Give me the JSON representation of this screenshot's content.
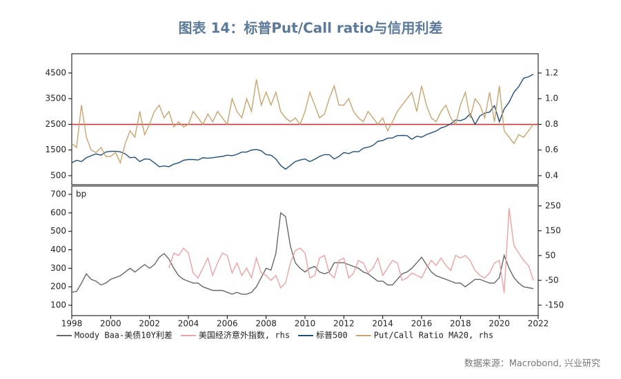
{
  "title": "图表 14：标普Put/Call ratio与信用利差",
  "source": "数据来源：Macrobond, 兴业研究",
  "chart_data": [
    {
      "type": "line",
      "xlim": [
        1998,
        2022
      ],
      "ylim": [
        150,
        5250
      ],
      "yticks": [
        500,
        1500,
        2500,
        3500,
        4500
      ],
      "y2lim": [
        0.33,
        1.35
      ],
      "y2ticks": [
        0.4,
        0.6,
        0.8,
        {
          "value": 1,
          "label": "1.0"
        },
        1.2
      ],
      "ref_line": {
        "axis": "y2",
        "value": 0.8,
        "color": "#d62728"
      },
      "x": [
        1998,
        1998.25,
        1998.5,
        1998.75,
        1999,
        1999.25,
        1999.5,
        1999.75,
        2000,
        2000.25,
        2000.5,
        2000.75,
        2001,
        2001.25,
        2001.5,
        2001.75,
        2002,
        2002.25,
        2002.5,
        2002.75,
        2003,
        2003.25,
        2003.5,
        2003.75,
        2004,
        2004.25,
        2004.5,
        2004.75,
        2005,
        2005.25,
        2005.5,
        2005.75,
        2006,
        2006.25,
        2006.5,
        2006.75,
        2007,
        2007.25,
        2007.5,
        2007.75,
        2008,
        2008.25,
        2008.5,
        2008.75,
        2009,
        2009.25,
        2009.5,
        2009.75,
        2010,
        2010.25,
        2010.5,
        2010.75,
        2011,
        2011.25,
        2011.5,
        2011.75,
        2012,
        2012.25,
        2012.5,
        2012.75,
        2013,
        2013.25,
        2013.5,
        2013.75,
        2014,
        2014.25,
        2014.5,
        2014.75,
        2015,
        2015.25,
        2015.5,
        2015.75,
        2016,
        2016.25,
        2016.5,
        2016.75,
        2017,
        2017.25,
        2017.5,
        2017.75,
        2018,
        2018.25,
        2018.5,
        2018.75,
        2019,
        2019.25,
        2019.5,
        2019.75,
        2020,
        2020.25,
        2020.5,
        2020.75,
        2021,
        2021.25,
        2021.5,
        2021.75
      ],
      "series": [
        {
          "name": "标普500",
          "color": "#1f4e79",
          "values": [
            1000,
            1100,
            1050,
            1200,
            1280,
            1350,
            1300,
            1420,
            1450,
            1450,
            1430,
            1350,
            1200,
            1220,
            1050,
            1150,
            1140,
            1000,
            850,
            880,
            850,
            950,
            1000,
            1100,
            1130,
            1130,
            1110,
            1200,
            1180,
            1200,
            1230,
            1250,
            1300,
            1280,
            1330,
            1420,
            1420,
            1500,
            1520,
            1470,
            1320,
            1300,
            1150,
            900,
            750,
            900,
            1050,
            1110,
            1150,
            1050,
            1140,
            1250,
            1320,
            1320,
            1150,
            1250,
            1400,
            1360,
            1440,
            1430,
            1570,
            1610,
            1680,
            1840,
            1870,
            1960,
            1970,
            2060,
            2070,
            2060,
            1920,
            2040,
            2000,
            2100,
            2170,
            2240,
            2360,
            2420,
            2520,
            2670,
            2640,
            2720,
            2910,
            2500,
            2830,
            2940,
            2980,
            3230,
            2600,
            3100,
            3360,
            3750,
            3970,
            4300,
            4350,
            4450
          ]
        },
        {
          "name": "Put/Call Ratio MA20, rhs",
          "color": "#c8a46e",
          "axis": "y2",
          "values": [
            0.65,
            0.62,
            0.95,
            0.7,
            0.6,
            0.58,
            0.62,
            0.55,
            0.55,
            0.58,
            0.5,
            0.65,
            0.75,
            0.7,
            0.9,
            0.72,
            0.8,
            0.9,
            0.95,
            0.85,
            0.9,
            0.78,
            0.82,
            0.78,
            0.8,
            0.9,
            0.85,
            0.8,
            0.88,
            0.82,
            0.9,
            0.85,
            0.8,
            1.0,
            0.9,
            0.85,
            1.0,
            0.9,
            1.15,
            0.95,
            1.05,
            0.95,
            1.05,
            0.9,
            0.85,
            0.82,
            0.85,
            0.8,
            0.9,
            1.05,
            0.95,
            0.85,
            0.88,
            1.0,
            1.1,
            0.95,
            0.95,
            1.0,
            0.9,
            0.85,
            0.82,
            0.9,
            0.85,
            0.8,
            0.85,
            0.75,
            0.82,
            0.9,
            0.95,
            1.0,
            1.05,
            0.9,
            1.1,
            0.95,
            0.85,
            0.82,
            0.9,
            0.95,
            0.85,
            0.8,
            0.95,
            1.05,
            0.85,
            1.0,
            0.95,
            0.85,
            1.05,
            0.82,
            1.1,
            0.75,
            0.7,
            0.65,
            0.72,
            0.7,
            0.75,
            0.8
          ]
        }
      ]
    },
    {
      "type": "line",
      "annotation": "bp",
      "xlim": [
        1998,
        2022
      ],
      "xticks": [
        1998,
        2000,
        2002,
        2004,
        2006,
        2008,
        2010,
        2012,
        2014,
        2016,
        2018,
        2020,
        2022
      ],
      "ylim": [
        44,
        745
      ],
      "yticks": [
        100,
        200,
        300,
        400,
        500,
        600,
        700
      ],
      "y2lim": [
        -192,
        330
      ],
      "y2ticks": [
        -150,
        -50,
        50,
        150,
        250
      ],
      "x": [
        1998,
        1998.25,
        1998.5,
        1998.75,
        1999,
        1999.25,
        1999.5,
        1999.75,
        2000,
        2000.25,
        2000.5,
        2000.75,
        2001,
        2001.25,
        2001.5,
        2001.75,
        2002,
        2002.25,
        2002.5,
        2002.75,
        2003,
        2003.25,
        2003.5,
        2003.75,
        2004,
        2004.25,
        2004.5,
        2004.75,
        2005,
        2005.25,
        2005.5,
        2005.75,
        2006,
        2006.25,
        2006.5,
        2006.75,
        2007,
        2007.25,
        2007.5,
        2007.75,
        2008,
        2008.25,
        2008.5,
        2008.75,
        2009,
        2009.25,
        2009.5,
        2009.75,
        2010,
        2010.25,
        2010.5,
        2010.75,
        2011,
        2011.25,
        2011.5,
        2011.75,
        2012,
        2012.25,
        2012.5,
        2012.75,
        2013,
        2013.25,
        2013.5,
        2013.75,
        2014,
        2014.25,
        2014.5,
        2014.75,
        2015,
        2015.25,
        2015.5,
        2015.75,
        2016,
        2016.25,
        2016.5,
        2016.75,
        2017,
        2017.25,
        2017.5,
        2017.75,
        2018,
        2018.25,
        2018.5,
        2018.75,
        2019,
        2019.25,
        2019.5,
        2019.75,
        2020,
        2020.25,
        2020.5,
        2020.75,
        2021,
        2021.25,
        2021.5,
        2021.75
      ],
      "series": [
        {
          "name": "Moody Baa-美债10Y利差",
          "color": "#666666",
          "values": [
            170,
            175,
            220,
            270,
            240,
            230,
            210,
            220,
            240,
            250,
            260,
            280,
            300,
            280,
            300,
            320,
            300,
            320,
            360,
            380,
            350,
            300,
            260,
            240,
            230,
            220,
            220,
            200,
            190,
            180,
            180,
            180,
            170,
            160,
            170,
            160,
            160,
            170,
            200,
            250,
            300,
            290,
            380,
            600,
            580,
            420,
            330,
            300,
            280,
            300,
            310,
            280,
            270,
            280,
            330,
            330,
            330,
            320,
            310,
            300,
            280,
            270,
            250,
            230,
            230,
            210,
            210,
            240,
            270,
            280,
            300,
            330,
            360,
            320,
            280,
            260,
            250,
            240,
            230,
            220,
            220,
            200,
            220,
            240,
            240,
            230,
            220,
            220,
            250,
            370,
            300,
            250,
            220,
            200,
            195,
            190
          ]
        },
        {
          "name": "美国经济意外指数, rhs",
          "color": "#f0a0a0",
          "axis": "y2",
          "values": [
            null,
            null,
            null,
            null,
            null,
            null,
            null,
            null,
            null,
            null,
            null,
            null,
            null,
            null,
            null,
            null,
            null,
            null,
            null,
            null,
            0,
            60,
            50,
            80,
            60,
            -20,
            -40,
            0,
            40,
            -30,
            20,
            60,
            50,
            -20,
            20,
            -30,
            0,
            -40,
            40,
            -20,
            -30,
            -50,
            -30,
            -80,
            -60,
            20,
            70,
            80,
            60,
            -40,
            -30,
            40,
            50,
            -20,
            -40,
            30,
            40,
            -40,
            -20,
            30,
            20,
            -20,
            0,
            40,
            -30,
            0,
            30,
            20,
            -50,
            -40,
            -20,
            -30,
            -40,
            0,
            30,
            10,
            40,
            10,
            -10,
            50,
            40,
            50,
            30,
            -10,
            -30,
            -40,
            -20,
            20,
            30,
            -100,
            240,
            90,
            60,
            30,
            10,
            -50
          ]
        }
      ]
    }
  ]
}
